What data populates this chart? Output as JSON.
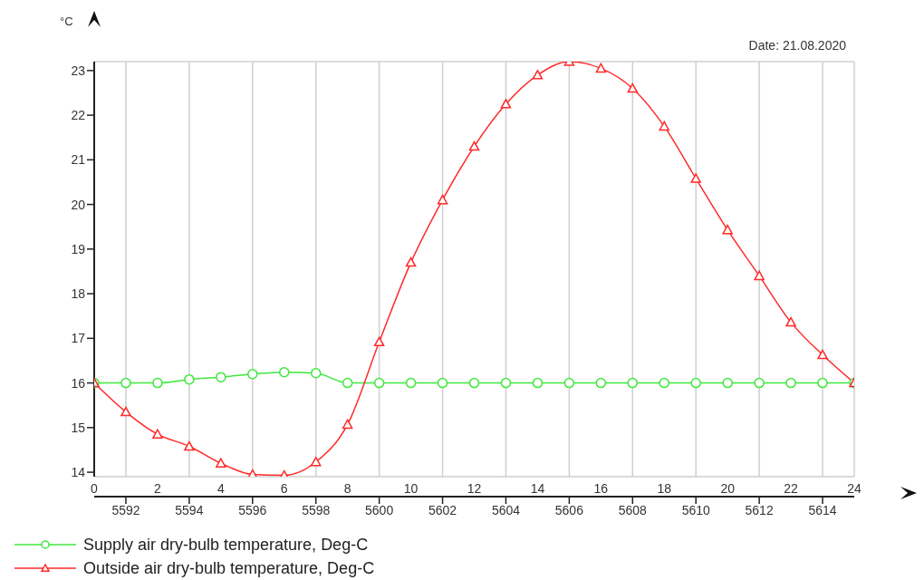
{
  "chart_data": {
    "type": "line",
    "ylabel": "°C",
    "annotations": [
      "Date: 21.08.2020"
    ],
    "x": [
      0,
      1,
      2,
      3,
      4,
      5,
      6,
      7,
      8,
      9,
      10,
      11,
      12,
      13,
      14,
      15,
      16,
      17,
      18,
      19,
      20,
      21,
      22,
      23,
      24
    ],
    "xlim": [
      0,
      24
    ],
    "xticks": [
      0,
      2,
      4,
      6,
      8,
      10,
      12,
      14,
      16,
      18,
      20,
      22,
      24
    ],
    "x2lim": [
      5591,
      5615
    ],
    "x2ticks": [
      5592,
      5594,
      5596,
      5598,
      5600,
      5602,
      5604,
      5606,
      5608,
      5610,
      5612,
      5614
    ],
    "ylim": [
      13.9,
      23.2
    ],
    "yticks": [
      14,
      15,
      16,
      17,
      18,
      19,
      20,
      21,
      22,
      23
    ],
    "grid": true,
    "legend": "bottom",
    "line_style": "solid",
    "series": [
      {
        "name": "Supply air dry-bulb temperature, Deg-C",
        "color": "#3ee83e",
        "marker": "circle",
        "values": [
          16.0,
          16.0,
          16.0,
          16.08,
          16.13,
          16.2,
          16.24,
          16.22,
          16.0,
          16.0,
          16.0,
          16.0,
          16.0,
          16.0,
          16.0,
          16.0,
          16.0,
          16.0,
          16.0,
          16.0,
          16.0,
          16.0,
          16.0,
          16.0,
          16.0
        ]
      },
      {
        "name": "Outside air dry-bulb temperature, Deg-C",
        "color": "#ff2a2a",
        "marker": "triangle",
        "values": [
          16.0,
          15.35,
          14.85,
          14.58,
          14.2,
          13.95,
          13.93,
          14.23,
          15.07,
          16.92,
          18.7,
          20.1,
          21.3,
          22.25,
          22.9,
          23.2,
          23.05,
          22.6,
          21.75,
          20.58,
          19.43,
          18.4,
          17.36,
          16.63,
          16.0
        ]
      }
    ]
  }
}
